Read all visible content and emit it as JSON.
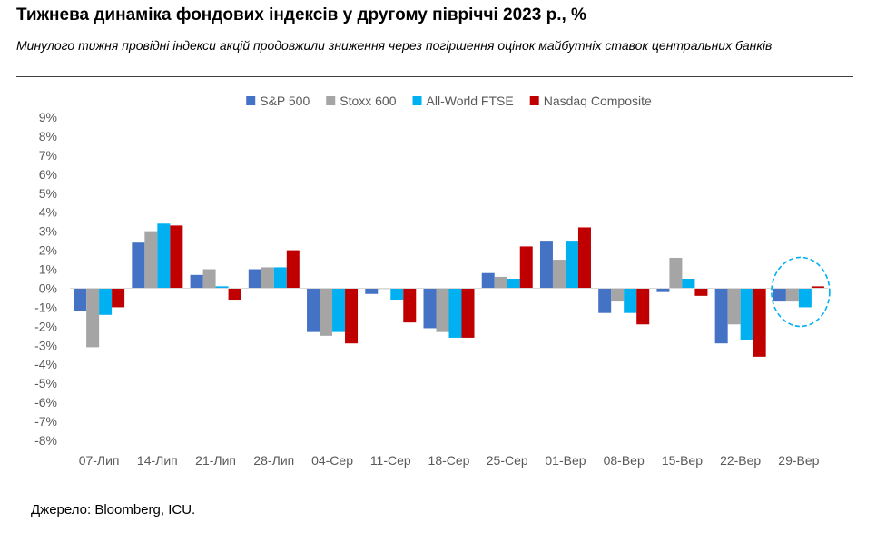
{
  "header": {
    "title": "Тижнева динаміка фондових індексів у другому півріччі 2023 р., %",
    "subtitle": "Минулого тижня провідні індекси акцій продовжили зниження через погіршення оцінок майбутніх ставок центральних банків"
  },
  "footer": {
    "source": "Джерело: Bloomberg, ICU."
  },
  "chart_data": {
    "type": "bar",
    "title": "Тижнева динаміка фондових індексів у другому півріччі 2023 р., %",
    "xlabel": "",
    "ylabel": "",
    "ylim": [
      -8,
      9
    ],
    "y_ticks": [
      "9%",
      "8%",
      "7%",
      "6%",
      "5%",
      "4%",
      "3%",
      "2%",
      "1%",
      "0%",
      "-1%",
      "-2%",
      "-3%",
      "-4%",
      "-5%",
      "-6%",
      "-7%",
      "-8%"
    ],
    "grid": false,
    "legend_position": "top",
    "categories": [
      "07-Лип",
      "14-Лип",
      "21-Лип",
      "28-Лип",
      "04-Сер",
      "11-Сер",
      "18-Сер",
      "25-Сер",
      "01-Вер",
      "08-Вер",
      "15-Вер",
      "22-Вер",
      "29-Вер"
    ],
    "series": [
      {
        "name": "S&P 500",
        "color": "#4472C4",
        "values": [
          -1.2,
          2.4,
          0.7,
          1.0,
          -2.3,
          -0.3,
          -2.1,
          0.8,
          2.5,
          -1.3,
          -0.2,
          -2.9,
          -0.7
        ]
      },
      {
        "name": "Stoxx 600",
        "color": "#A5A5A5",
        "values": [
          -3.1,
          3.0,
          1.0,
          1.1,
          -2.5,
          0.0,
          -2.3,
          0.6,
          1.5,
          -0.7,
          1.6,
          -1.9,
          -0.7
        ]
      },
      {
        "name": "All-World FTSE",
        "color": "#00B0F0",
        "values": [
          -1.4,
          3.4,
          0.1,
          1.1,
          -2.3,
          -0.6,
          -2.6,
          0.5,
          2.5,
          -1.3,
          0.5,
          -2.7,
          -1.0
        ]
      },
      {
        "name": "Nasdaq Composite",
        "color": "#C00000",
        "values": [
          -1.0,
          3.3,
          -0.6,
          2.0,
          -2.9,
          -1.8,
          -2.6,
          2.2,
          3.2,
          -1.9,
          -0.4,
          -3.6,
          0.1
        ]
      }
    ],
    "annotations": [
      {
        "kind": "highlight-ellipse",
        "category": "29-Вер",
        "color": "#00B0F0"
      }
    ]
  }
}
